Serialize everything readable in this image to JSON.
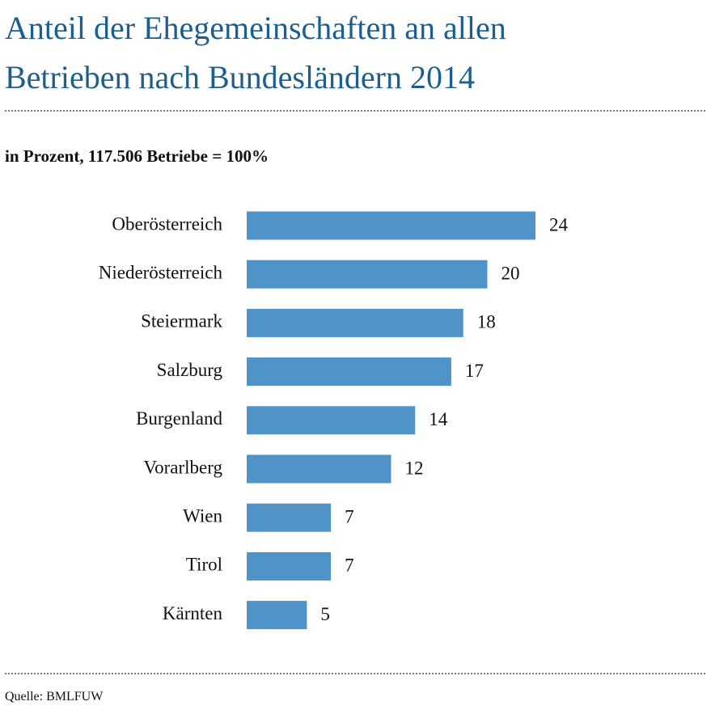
{
  "chart_data": {
    "type": "bar",
    "orientation": "horizontal",
    "title": "Anteil der Ehegemeinschaften an allen Betrieben nach Bundesländern 2014",
    "subtitle": "in Prozent, 117.506 Betriebe = 100%",
    "categories": [
      "Oberösterreich",
      "Niederösterreich",
      "Steiermark",
      "Salzburg",
      "Burgenland",
      "Vorarlberg",
      "Wien",
      "Tirol",
      "Kärnten"
    ],
    "values": [
      24,
      20,
      18,
      17,
      14,
      12,
      7,
      7,
      5
    ],
    "color": "#4f93c8",
    "source": "Quelle: BMLFUW"
  }
}
